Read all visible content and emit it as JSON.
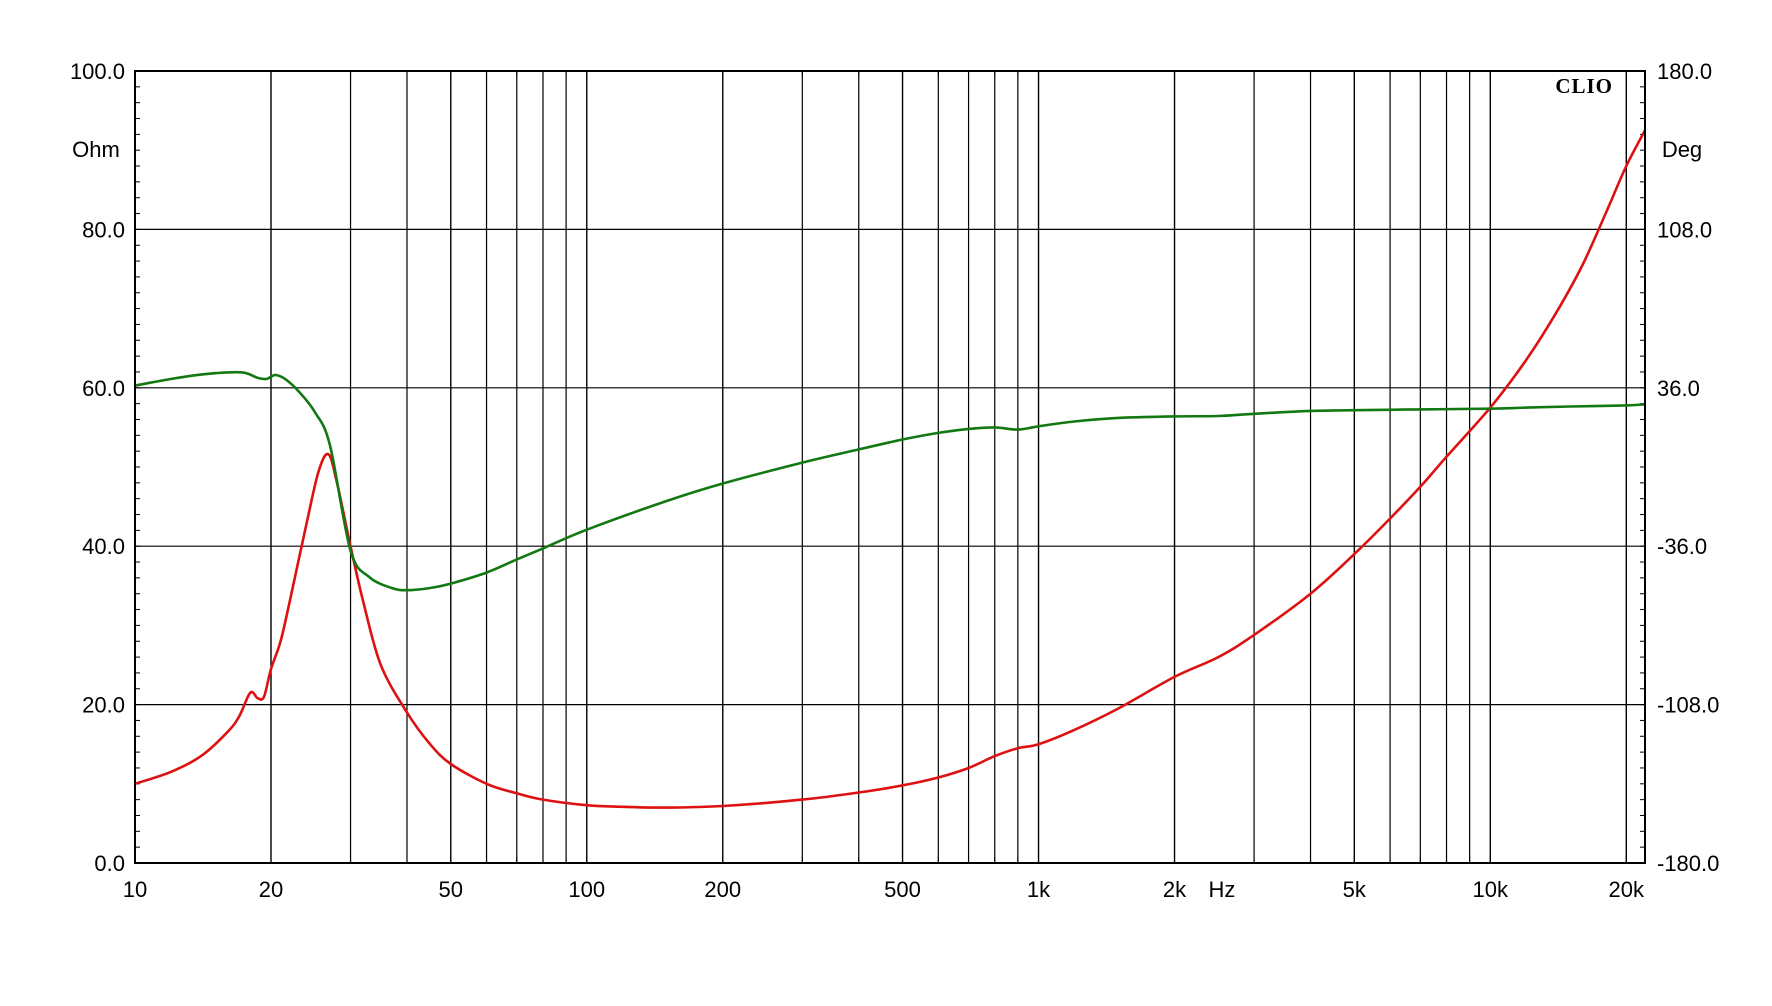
{
  "chart_data": {
    "type": "line",
    "brand": "CLIO",
    "x_unit_label": "Hz",
    "left_unit_label": "Ohm",
    "right_unit_label": "Deg",
    "x_scale": "log",
    "xlim": [
      10,
      22000
    ],
    "ylim_left": [
      0,
      100
    ],
    "ylim_right": [
      -180,
      180
    ],
    "grid": true,
    "x_major_ticks": [
      {
        "value": 10,
        "label": "10"
      },
      {
        "value": 20,
        "label": "20"
      },
      {
        "value": 50,
        "label": "50"
      },
      {
        "value": 100,
        "label": "100"
      },
      {
        "value": 200,
        "label": "200"
      },
      {
        "value": 500,
        "label": "500"
      },
      {
        "value": 1000,
        "label": "1k"
      },
      {
        "value": 2000,
        "label": "2k"
      },
      {
        "value": 5000,
        "label": "5k"
      },
      {
        "value": 10000,
        "label": "10k"
      },
      {
        "value": 20000,
        "label": "20k"
      }
    ],
    "x_minor_grid": [
      30,
      40,
      60,
      70,
      80,
      90,
      300,
      400,
      600,
      700,
      800,
      900,
      3000,
      4000,
      6000,
      7000,
      8000,
      9000
    ],
    "y_left_ticks": [
      {
        "value": 0,
        "label": "0.0"
      },
      {
        "value": 20,
        "label": "20.0"
      },
      {
        "value": 40,
        "label": "40.0"
      },
      {
        "value": 60,
        "label": "60.0"
      },
      {
        "value": 80,
        "label": "80.0"
      },
      {
        "value": 100,
        "label": "100.0"
      }
    ],
    "y_right_ticks": [
      {
        "value": -180,
        "label": "-180.0"
      },
      {
        "value": -108,
        "label": "-108.0"
      },
      {
        "value": -36,
        "label": "-36.0"
      },
      {
        "value": 36,
        "label": "36.0"
      },
      {
        "value": 108,
        "label": "108.0"
      },
      {
        "value": 180,
        "label": "180.0"
      }
    ],
    "series": [
      {
        "color": "#dd1111",
        "axis": "left",
        "points": [
          [
            10,
            10.0
          ],
          [
            12,
            11.5
          ],
          [
            14,
            13.5
          ],
          [
            16,
            16.5
          ],
          [
            17,
            18.5
          ],
          [
            18,
            21.5
          ],
          [
            18.7,
            20.8
          ],
          [
            19.3,
            21.0
          ],
          [
            20,
            24.5
          ],
          [
            21,
            28.0
          ],
          [
            22,
            33.0
          ],
          [
            24,
            43.0
          ],
          [
            25.5,
            49.5
          ],
          [
            26.8,
            51.6
          ],
          [
            28,
            48.0
          ],
          [
            30,
            40.0
          ],
          [
            32,
            33.0
          ],
          [
            35,
            25.0
          ],
          [
            40,
            19.0
          ],
          [
            45,
            15.0
          ],
          [
            50,
            12.5
          ],
          [
            60,
            10.0
          ],
          [
            70,
            8.8
          ],
          [
            80,
            8.0
          ],
          [
            100,
            7.3
          ],
          [
            120,
            7.1
          ],
          [
            150,
            7.0
          ],
          [
            200,
            7.2
          ],
          [
            300,
            8.0
          ],
          [
            400,
            8.9
          ],
          [
            500,
            9.8
          ],
          [
            600,
            10.8
          ],
          [
            700,
            12.0
          ],
          [
            800,
            13.5
          ],
          [
            900,
            14.5
          ],
          [
            1000,
            15.0
          ],
          [
            1200,
            16.8
          ],
          [
            1500,
            19.5
          ],
          [
            2000,
            23.5
          ],
          [
            2500,
            26.0
          ],
          [
            3000,
            28.8
          ],
          [
            4000,
            34.0
          ],
          [
            5000,
            39.0
          ],
          [
            6000,
            43.5
          ],
          [
            7000,
            47.5
          ],
          [
            8000,
            51.3
          ],
          [
            10000,
            57.5
          ],
          [
            12000,
            63.5
          ],
          [
            14000,
            69.5
          ],
          [
            16000,
            75.5
          ],
          [
            18000,
            82.0
          ],
          [
            20000,
            88.0
          ],
          [
            22000,
            92.5
          ]
        ]
      },
      {
        "color": "#127812",
        "axis": "right",
        "points": [
          [
            10,
            37.0
          ],
          [
            12,
            40.0
          ],
          [
            14,
            42.0
          ],
          [
            16,
            43.0
          ],
          [
            17.5,
            42.8
          ],
          [
            18.7,
            40.5
          ],
          [
            19.5,
            40.0
          ],
          [
            20,
            41.0
          ],
          [
            20.5,
            41.8
          ],
          [
            21.5,
            40.0
          ],
          [
            23,
            34.5
          ],
          [
            25,
            25.0
          ],
          [
            27,
            10.0
          ],
          [
            30,
            -38.0
          ],
          [
            33,
            -50.0
          ],
          [
            37,
            -55.0
          ],
          [
            40,
            -56.0
          ],
          [
            45,
            -55.0
          ],
          [
            50,
            -53.0
          ],
          [
            60,
            -48.0
          ],
          [
            70,
            -42.0
          ],
          [
            80,
            -37.0
          ],
          [
            100,
            -28.5
          ],
          [
            150,
            -15.5
          ],
          [
            200,
            -7.5
          ],
          [
            300,
            2.0
          ],
          [
            400,
            8.0
          ],
          [
            500,
            12.5
          ],
          [
            600,
            15.5
          ],
          [
            700,
            17.3
          ],
          [
            800,
            18.0
          ],
          [
            900,
            17.0
          ],
          [
            1000,
            18.5
          ],
          [
            1200,
            20.7
          ],
          [
            1500,
            22.3
          ],
          [
            2000,
            23.0
          ],
          [
            2500,
            23.2
          ],
          [
            3000,
            24.2
          ],
          [
            4000,
            25.5
          ],
          [
            5000,
            25.8
          ],
          [
            7000,
            26.2
          ],
          [
            10000,
            26.5
          ],
          [
            12000,
            27.0
          ],
          [
            15000,
            27.5
          ],
          [
            20000,
            28.0
          ],
          [
            22000,
            28.5
          ]
        ]
      }
    ]
  }
}
